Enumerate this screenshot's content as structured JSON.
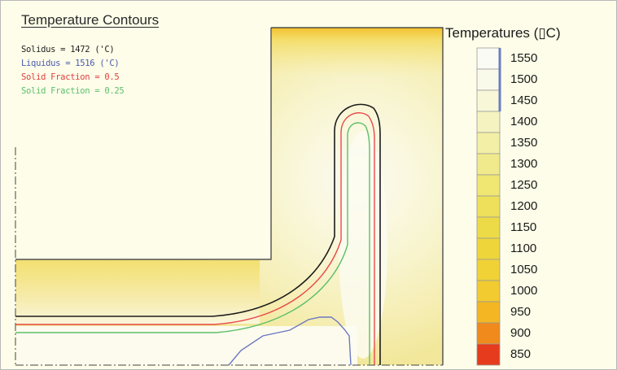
{
  "figure": {
    "title": "Temperature Contours",
    "legend": [
      {
        "text": "Solidus  = 1472 ('C)",
        "color": "#222222"
      },
      {
        "text": "Liquidus = 1516 ('C)",
        "color": "#4a5bb0"
      },
      {
        "text": "Solid Fraction = 0.5",
        "color": "#e04040"
      },
      {
        "text": "Solid Fraction = 0.25",
        "color": "#5cbf6a"
      }
    ]
  },
  "color_scale": {
    "title": "Temperatures (▯C)",
    "levels": [
      {
        "value": "1550",
        "color": "#fbfbf6"
      },
      {
        "value": "1500",
        "color": "#fafaea"
      },
      {
        "value": "1450",
        "color": "#f8f7d8"
      },
      {
        "value": "1400",
        "color": "#f5f3c0"
      },
      {
        "value": "1350",
        "color": "#f3efa6"
      },
      {
        "value": "1300",
        "color": "#f1ea8c"
      },
      {
        "value": "1250",
        "color": "#f0e672"
      },
      {
        "value": "1200",
        "color": "#eee05a"
      },
      {
        "value": "1150",
        "color": "#ecdb46"
      },
      {
        "value": "1100",
        "color": "#eed63a"
      },
      {
        "value": "1050",
        "color": "#f0d236"
      },
      {
        "value": "1000",
        "color": "#f2cb30"
      },
      {
        "value": "950",
        "color": "#f4b622"
      },
      {
        "value": "900",
        "color": "#f08a1c"
      },
      {
        "value": "850",
        "color": "#e63b1c"
      }
    ]
  }
}
